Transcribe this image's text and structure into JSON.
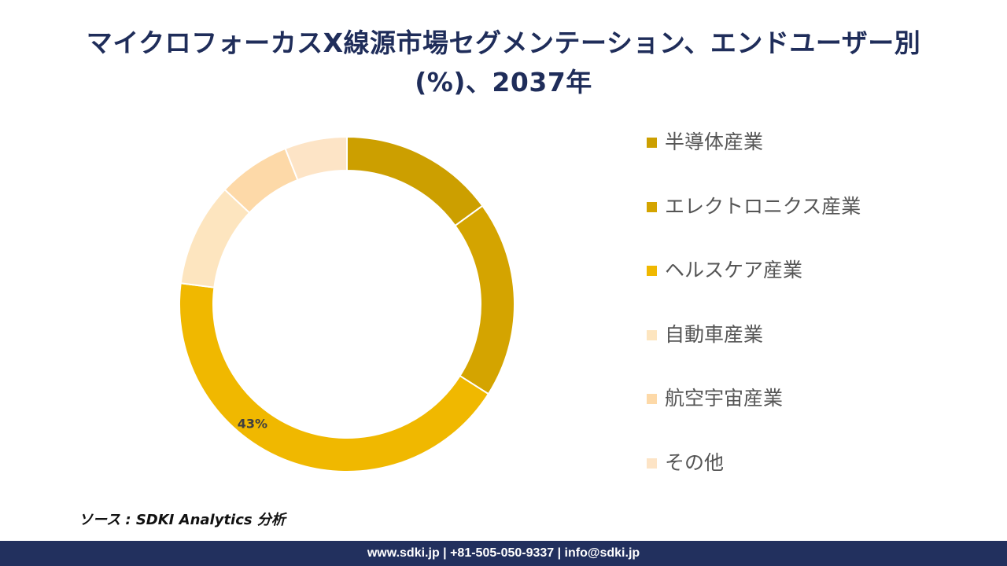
{
  "title_line1": "マイクロフォーカスX線源市場セグメンテーション、エンドユーザー別",
  "title_line2": "(%)、2037年",
  "chart_data": {
    "type": "pie",
    "variant": "donut",
    "title": "マイクロフォーカスX線源市場セグメンテーション、エンドユーザー別 (%)、2037年",
    "legend_position": "right",
    "categories": [
      "半導体産業",
      "エレクトロニクス産業",
      "ヘルスケア産業",
      "自動車産業",
      "航空宇宙産業",
      "その他"
    ],
    "values": [
      15,
      19,
      43,
      10,
      7,
      6
    ],
    "colors": [
      "#cc9f00",
      "#d4a400",
      "#f0b800",
      "#fde5bf",
      "#fdd9a8",
      "#fde4c6"
    ],
    "data_labels": [
      "",
      "",
      "43%",
      "",
      "",
      ""
    ]
  },
  "source": "ソース : SDKI Analytics 分析",
  "footer": "www.sdki.jp | +81-505-050-9337 | info@sdki.jp"
}
